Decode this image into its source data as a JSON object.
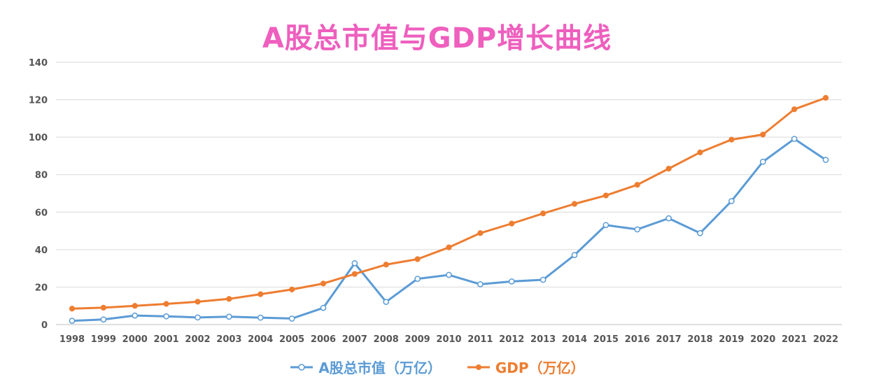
{
  "chart_data": {
    "type": "line",
    "title": "A股总市值与GDP增长曲线",
    "categories": [
      "1998",
      "1999",
      "2000",
      "2001",
      "2002",
      "2003",
      "2004",
      "2005",
      "2006",
      "2007",
      "2008",
      "2009",
      "2010",
      "2011",
      "2012",
      "2013",
      "2014",
      "2015",
      "2016",
      "2017",
      "2018",
      "2019",
      "2020",
      "2021",
      "2022"
    ],
    "ylim": [
      0,
      140
    ],
    "yticks": [
      0,
      20,
      40,
      60,
      80,
      100,
      120,
      140
    ],
    "grid": true,
    "legend_position": "bottom",
    "series": [
      {
        "name": "A股总市值（万亿）",
        "color": "#5b9bd5",
        "marker": "open-circle",
        "values": [
          2.0,
          2.7,
          4.8,
          4.4,
          3.8,
          4.2,
          3.7,
          3.2,
          8.9,
          32.7,
          12.1,
          24.4,
          26.5,
          21.5,
          23.0,
          23.9,
          37.1,
          53.1,
          50.8,
          56.7,
          48.8,
          65.9,
          86.9,
          99.1,
          87.9
        ]
      },
      {
        "name": "GDP（万亿）",
        "color": "#ed7d31",
        "marker": "filled-circle",
        "values": [
          8.5,
          9.0,
          10.0,
          11.0,
          12.2,
          13.7,
          16.2,
          18.7,
          21.9,
          27.0,
          32.0,
          34.9,
          41.2,
          48.8,
          53.9,
          59.3,
          64.4,
          68.9,
          74.6,
          83.2,
          91.9,
          98.7,
          101.4,
          114.9,
          121.0
        ]
      }
    ]
  }
}
